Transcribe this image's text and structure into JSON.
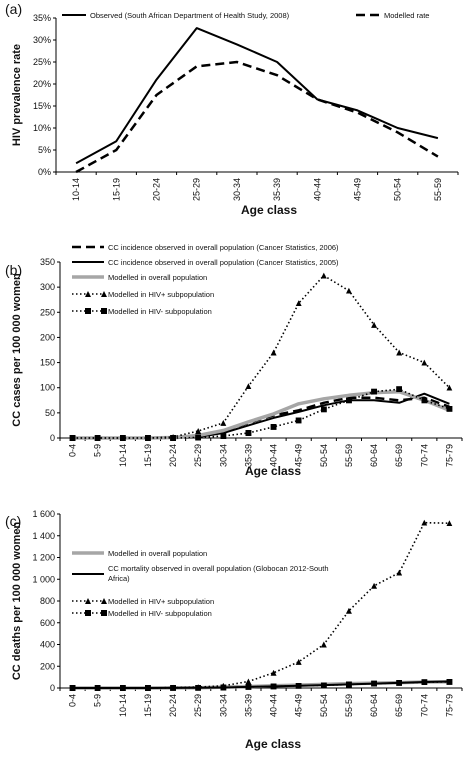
{
  "chart_data": [
    {
      "panel_label": "(a)",
      "type": "line",
      "categories": [
        "10-14",
        "15-19",
        "20-24",
        "25-29",
        "30-34",
        "35-39",
        "40-44",
        "45-49",
        "50-54",
        "55-59"
      ],
      "ylabel": "HIV prevalence rate",
      "xlabel": "Age class",
      "ylim": [
        0,
        35
      ],
      "yticks": [
        0,
        5,
        10,
        15,
        20,
        25,
        30,
        35
      ],
      "ytick_labels": [
        "0%",
        "5%",
        "10%",
        "15%",
        "20%",
        "25%",
        "30%",
        "35%"
      ],
      "legend_position": "top",
      "series": [
        {
          "name": "Observed (South African Department of Health Study, 2008)",
          "style": "solid",
          "color": "#000000",
          "values": [
            2,
            7,
            21,
            32.7,
            29,
            25,
            16.5,
            14,
            10,
            7.7
          ]
        },
        {
          "name": "Modelled rate",
          "style": "dashed",
          "color": "#000000",
          "values": [
            0,
            5,
            17.5,
            24,
            25,
            22,
            16.5,
            13.5,
            9,
            3.5
          ]
        }
      ]
    },
    {
      "panel_label": "(b)",
      "type": "line",
      "categories": [
        "0-4",
        "5-9",
        "10-14",
        "15-19",
        "20-24",
        "25-29",
        "30-34",
        "35-39",
        "40-44",
        "45-49",
        "50-54",
        "55-59",
        "60-64",
        "65-69",
        "70-74",
        "75-79"
      ],
      "ylabel": "CC cases per 100 000 women",
      "xlabel": "Age class",
      "ylim": [
        0,
        350
      ],
      "yticks": [
        0,
        50,
        100,
        150,
        200,
        250,
        300,
        350
      ],
      "ytick_labels": [
        "0",
        "50",
        "100",
        "150",
        "200",
        "250",
        "300",
        "350"
      ],
      "legend_position": "top-left",
      "series": [
        {
          "name": "CC incidence observed in overall population (Cancer Statistics, 2006)",
          "style": "dashed",
          "color": "#000000",
          "values": [
            0,
            0,
            0,
            0,
            0,
            2,
            14,
            30,
            45,
            55,
            70,
            80,
            80,
            75,
            80,
            62
          ]
        },
        {
          "name": "CC incidence observed in overall population (Cancer Statistics, 2005)",
          "style": "solid",
          "color": "#000000",
          "values": [
            0,
            0,
            0,
            0,
            0,
            2,
            10,
            25,
            40,
            52,
            65,
            75,
            75,
            70,
            88,
            68
          ]
        },
        {
          "name": "Modelled in overall population",
          "style": "solid-thick",
          "color": "#a6a6a6",
          "values": [
            0,
            0,
            0,
            0,
            1,
            5,
            15,
            32,
            48,
            68,
            78,
            85,
            90,
            92,
            75,
            55
          ]
        },
        {
          "name": "Modelled in HIV+ subpopulation",
          "style": "dotted-triangle",
          "color": "#000000",
          "values": [
            0,
            0,
            0,
            0,
            2,
            14,
            30,
            103,
            170,
            268,
            323,
            293,
            225,
            170,
            150,
            100
          ]
        },
        {
          "name": "Modelled in HIV- subpopulation",
          "style": "dotted-square",
          "color": "#000000",
          "values": [
            0,
            0,
            0,
            0,
            0,
            1,
            4,
            10,
            22,
            35,
            57,
            75,
            92,
            97,
            75,
            58
          ]
        }
      ]
    },
    {
      "panel_label": "(c)",
      "type": "line",
      "categories": [
        "0-4",
        "5-9",
        "10-14",
        "15-19",
        "20-24",
        "25-29",
        "30-34",
        "35-39",
        "40-44",
        "45-49",
        "50-54",
        "55-59",
        "60-64",
        "65-69",
        "70-74",
        "75-79"
      ],
      "ylabel": "CC deaths per 100 000 women",
      "xlabel": "Age  class",
      "ylim": [
        0,
        1600
      ],
      "yticks": [
        0,
        200,
        400,
        600,
        800,
        1000,
        1200,
        1400,
        1600
      ],
      "ytick_labels": [
        "0",
        "200",
        "400",
        "600",
        "800",
        "1 000",
        "1 200",
        "1 400",
        "1 600"
      ],
      "legend_position": "top-left",
      "series": [
        {
          "name": "Modelled in overall population",
          "style": "solid-thick",
          "color": "#a6a6a6",
          "values": [
            0,
            0,
            0,
            0,
            1,
            3,
            8,
            14,
            20,
            27,
            33,
            40,
            45,
            50,
            55,
            58
          ]
        },
        {
          "name": "CC mortality observed in overall population (Globocan 2012-South Africa)",
          "style": "solid",
          "color": "#000000",
          "values": [
            0,
            0,
            0,
            0,
            1,
            2,
            5,
            10,
            15,
            20,
            27,
            33,
            40,
            47,
            55,
            60
          ]
        },
        {
          "name": "Modelled in HIV+ subpopulation",
          "style": "dotted-triangle",
          "color": "#000000",
          "values": [
            0,
            0,
            0,
            2,
            3,
            8,
            20,
            60,
            140,
            240,
            400,
            710,
            940,
            1060,
            1520,
            1515
          ]
        },
        {
          "name": "Modelled in HIV- subpopulation",
          "style": "dotted-square",
          "color": "#000000",
          "values": [
            0,
            0,
            0,
            0,
            1,
            2,
            5,
            10,
            15,
            20,
            25,
            32,
            40,
            47,
            53,
            56
          ]
        }
      ]
    }
  ]
}
